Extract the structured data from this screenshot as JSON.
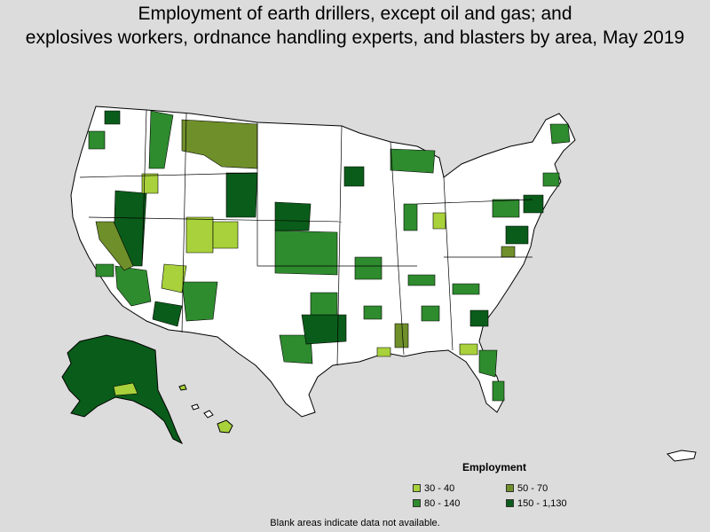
{
  "title_line1": "Employment of earth drillers, except oil and gas; and",
  "title_line2": "explosives workers, ordnance handling experts, and blasters by area, May 2019",
  "legend": {
    "title": "Employment",
    "items": [
      {
        "label": "30 - 40",
        "color": "#a8d13b"
      },
      {
        "label": "50 - 70",
        "color": "#6f8f2a"
      },
      {
        "label": "80 - 140",
        "color": "#2e8b2e"
      },
      {
        "label": "150 - 1,130",
        "color": "#0a5c1a"
      }
    ]
  },
  "note": "Blank areas indicate data not available.",
  "colors": {
    "background": "#dcdcdc",
    "land": "#ffffff",
    "border": "#000000"
  }
}
